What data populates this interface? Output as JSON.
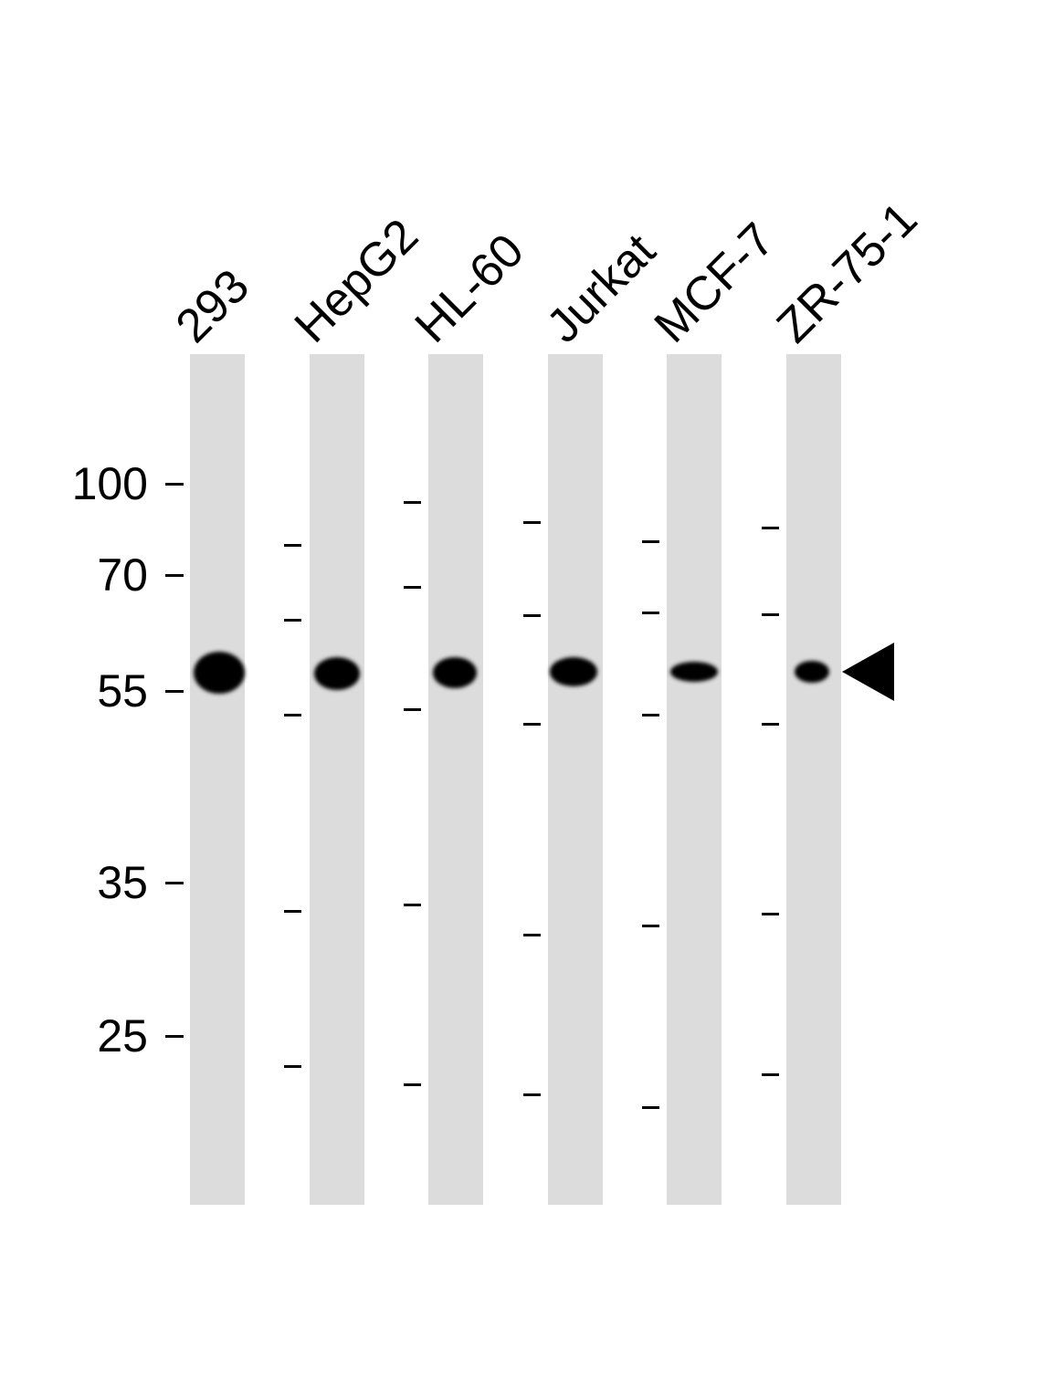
{
  "lanes": [
    {
      "label": "293"
    },
    {
      "label": "HepG2"
    },
    {
      "label": "HL-60"
    },
    {
      "label": "Jurkat"
    },
    {
      "label": "MCF-7"
    },
    {
      "label": "ZR-75-1"
    }
  ],
  "mw_markers": [
    "100",
    "70",
    "55",
    "35",
    "25"
  ],
  "colors": {
    "lane_background": "#dcdcdc",
    "band": "#000000"
  },
  "arrow_icon": "left-pointing-triangle"
}
